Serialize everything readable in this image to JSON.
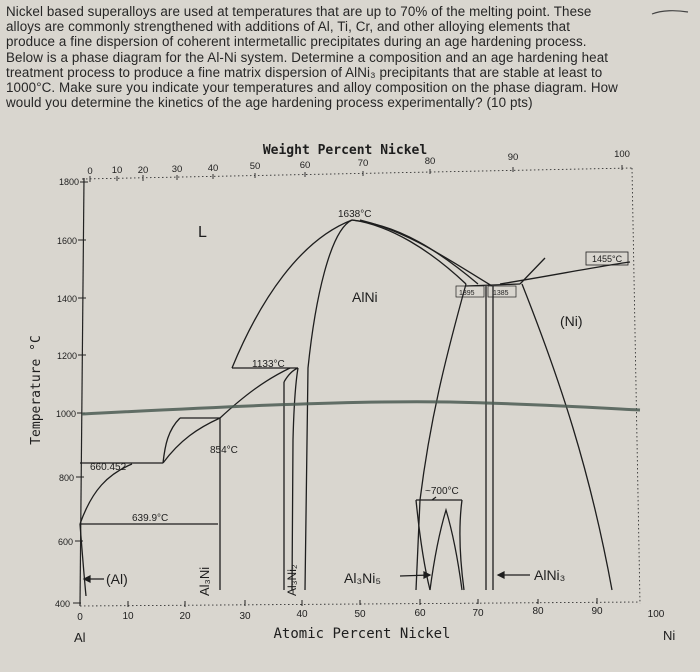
{
  "question": {
    "lines": [
      "Nickel based superalloys are used at temperatures that are up to 70% of the melting point. These",
      "alloys are commonly strengthened with additions of Al, Ti, Cr, and other alloying elements that",
      "produce a fine dispersion of coherent intermetallic precipitates during an age hardening process.",
      "Below is a phase diagram for the Al-Ni system. Determine a composition and an age hardening heat",
      "treatment process to produce a fine matrix dispersion of AlNi₃ precipitants that are stable at least to",
      "1000°C. Make sure you indicate your temperatures and alloy composition on the phase diagram. How",
      "would you determine the kinetics of the age hardening process experimentally? (10 pts)"
    ]
  },
  "diagram": {
    "top_axis_title": "Weight Percent Nickel",
    "top_ticks": [
      "0",
      "10",
      "20",
      "30",
      "40",
      "50",
      "60",
      "70",
      "80",
      "90",
      "100"
    ],
    "bottom_axis_title": "Atomic Percent Nickel",
    "bottom_ticks": [
      "0",
      "10",
      "20",
      "30",
      "40",
      "50",
      "60",
      "70",
      "80",
      "90",
      "100"
    ],
    "left_element": "Al",
    "right_element": "Ni",
    "y_axis_title": "Temperature °C",
    "y_ticks": [
      "1800",
      "1600",
      "1400",
      "1200",
      "1000",
      "800",
      "600",
      "400"
    ],
    "phases": {
      "liquid": "L",
      "alni": "AlNi",
      "ni": "(Ni)",
      "al": "(Al)",
      "al3ni": "Al₃Ni",
      "al3ni2": "Al₃Ni₂",
      "al3ni5": "Al₃Ni₅",
      "alni3": "AlNi₃"
    },
    "annotations": {
      "t1638": "1638°C",
      "t1455": "1455°C",
      "t1133": "1133°C",
      "t854": "854°C",
      "t660": "660.452",
      "t639": "639.9°C",
      "t1395": "1395",
      "t1385": "1385",
      "t700": "~700°C"
    },
    "colors": {
      "ink": "#1e1e1e",
      "pencil_line": "#4a5a52"
    }
  }
}
